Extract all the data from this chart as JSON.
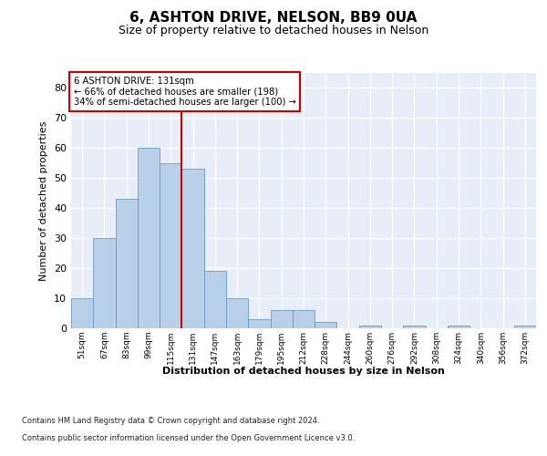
{
  "title": "6, ASHTON DRIVE, NELSON, BB9 0UA",
  "subtitle": "Size of property relative to detached houses in Nelson",
  "xlabel": "Distribution of detached houses by size in Nelson",
  "ylabel": "Number of detached properties",
  "bar_color": "#b8d0e8",
  "bar_edge_color": "#6699cc",
  "background_color": "#e8eef8",
  "grid_color": "#ffffff",
  "categories": [
    "51sqm",
    "67sqm",
    "83sqm",
    "99sqm",
    "115sqm",
    "131sqm",
    "147sqm",
    "163sqm",
    "179sqm",
    "195sqm",
    "212sqm",
    "228sqm",
    "244sqm",
    "260sqm",
    "276sqm",
    "292sqm",
    "308sqm",
    "324sqm",
    "340sqm",
    "356sqm",
    "372sqm"
  ],
  "values": [
    10,
    30,
    43,
    60,
    55,
    53,
    19,
    10,
    3,
    6,
    6,
    2,
    0,
    1,
    0,
    1,
    0,
    1,
    0,
    0,
    1
  ],
  "marker_label": "6 ASHTON DRIVE: 131sqm",
  "annotation_line1": "← 66% of detached houses are smaller (198)",
  "annotation_line2": "34% of semi-detached houses are larger (100) →",
  "red_line_color": "#cc0000",
  "annotation_box_color": "#ffffff",
  "annotation_box_edge": "#cc0000",
  "ylim": [
    0,
    85
  ],
  "yticks": [
    0,
    10,
    20,
    30,
    40,
    50,
    60,
    70,
    80
  ],
  "red_line_idx": 5,
  "footer1": "Contains HM Land Registry data © Crown copyright and database right 2024.",
  "footer2": "Contains public sector information licensed under the Open Government Licence v3.0."
}
